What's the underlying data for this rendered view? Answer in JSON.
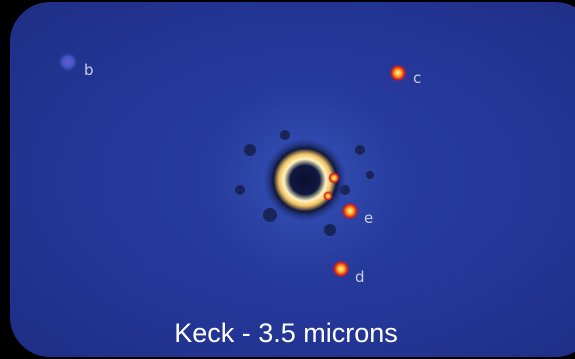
{
  "image": {
    "caption": "Keck - 3.5 microns",
    "labels": [
      "b",
      "c",
      "e",
      "d"
    ]
  }
}
